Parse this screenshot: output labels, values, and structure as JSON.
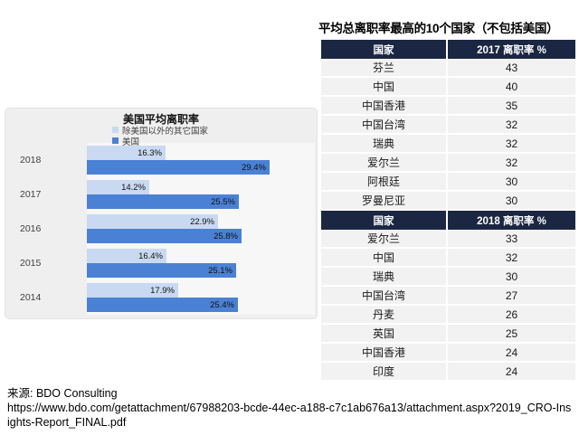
{
  "colors": {
    "bar_other": "#c9d9f1",
    "bar_us": "#4a81d4",
    "table_header_bg": "#1b2742",
    "table_row_bg": "#f2f2f2",
    "chart_bg": "#efefef"
  },
  "chart_data": [
    {
      "type": "bar",
      "orientation": "horizontal",
      "title": "美国平均离职率",
      "categories": [
        "2018",
        "2017",
        "2016",
        "2015",
        "2014"
      ],
      "series": [
        {
          "name": "除美国以外的其它国家",
          "color": "#c9d9f1",
          "values": [
            16.3,
            14.2,
            22.9,
            16.4,
            17.9
          ]
        },
        {
          "name": "美国",
          "color": "#4a81d4",
          "values": [
            29.4,
            25.5,
            25.8,
            25.1,
            25.4
          ]
        }
      ],
      "value_suffix": "%",
      "legend_position": "top",
      "grid": false
    },
    {
      "type": "table",
      "title": "平均总离职率最高的10个国家（不包括美国）",
      "sections": [
        {
          "headers": [
            "国家",
            "2017 离职率 %"
          ],
          "rows": [
            [
              "芬兰",
              "43"
            ],
            [
              "中国",
              "40"
            ],
            [
              "中国香港",
              "35"
            ],
            [
              "中国台湾",
              "32"
            ],
            [
              "瑞典",
              "32"
            ],
            [
              "爱尔兰",
              "32"
            ],
            [
              "阿根廷",
              "30"
            ],
            [
              "罗曼尼亚",
              "30"
            ]
          ]
        },
        {
          "headers": [
            "国家",
            "2018 离职率 %"
          ],
          "rows": [
            [
              "爱尔兰",
              "33"
            ],
            [
              "中国",
              "32"
            ],
            [
              "瑞典",
              "30"
            ],
            [
              "中国台湾",
              "27"
            ],
            [
              "丹麦",
              "26"
            ],
            [
              "英国",
              "25"
            ],
            [
              "中国香港",
              "24"
            ],
            [
              "印度",
              "24"
            ]
          ]
        }
      ]
    }
  ],
  "footer": {
    "source": "来源: BDO Consulting",
    "url": "https://www.bdo.com/getattachment/67988203-bcde-44ec-a188-c7c1ab676a13/attachment.aspx?2019_CRO-Insights-Report_FINAL.pdf"
  }
}
